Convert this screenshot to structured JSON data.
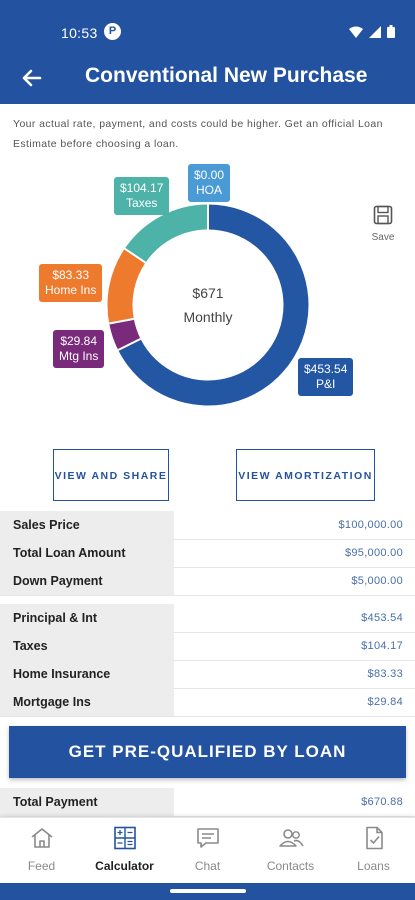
{
  "status_bar": {
    "time": "10:53",
    "notification_icon": "circle-p-icon",
    "icons": [
      "wifi-icon",
      "cell-signal-icon",
      "battery-icon"
    ]
  },
  "header": {
    "title": "Conventional New Purchase",
    "back_icon": "arrow-left-icon"
  },
  "disclaimer": "Your actual rate, payment, and costs could be higher. Get an official Loan Estimate before choosing a loan.",
  "chart_data": {
    "type": "pie",
    "style": "donut",
    "center_label": {
      "amount": "$671",
      "period": "Monthly"
    },
    "slices": [
      {
        "name": "P&I",
        "label": "$453.54",
        "value": 453.54,
        "color": "#2457a3"
      },
      {
        "name": "Mtg Ins",
        "label": "$29.84",
        "value": 29.84,
        "color": "#7a2a7a"
      },
      {
        "name": "Home Ins",
        "label": "$83.33",
        "value": 83.33,
        "color": "#ee7a2e"
      },
      {
        "name": "Taxes",
        "label": "$104.17",
        "value": 104.17,
        "color": "#4db3a8"
      },
      {
        "name": "HOA",
        "label": "$0.00",
        "value": 0.0,
        "color": "#4a9ad6"
      }
    ]
  },
  "save": {
    "label": "Save",
    "icon": "floppy-disk-icon"
  },
  "buttons": {
    "view_share": "VIEW AND SHARE",
    "view_amortization": "VIEW AMORTIZATION"
  },
  "summary_rows": [
    {
      "label": "Sales Price",
      "value": "$100,000.00"
    },
    {
      "label": "Total Loan Amount",
      "value": "$95,000.00"
    },
    {
      "label": "Down Payment",
      "value": "$5,000.00"
    }
  ],
  "payment_rows": [
    {
      "label": "Principal & Int",
      "value": "$453.54"
    },
    {
      "label": "Taxes",
      "value": "$104.17"
    },
    {
      "label": "Home Insurance",
      "value": "$83.33"
    },
    {
      "label": "Mortgage Ins",
      "value": "$29.84"
    }
  ],
  "cta": "GET PRE-QUALIFIED BY LOAN",
  "total_row": {
    "label": "Total Payment",
    "value": "$670.88"
  },
  "nav": [
    {
      "label": "Feed",
      "icon": "home-icon",
      "active": false
    },
    {
      "label": "Calculator",
      "icon": "calculator-icon",
      "active": true
    },
    {
      "label": "Chat",
      "icon": "chat-icon",
      "active": false
    },
    {
      "label": "Contacts",
      "icon": "contacts-icon",
      "active": false
    },
    {
      "label": "Loans",
      "icon": "document-check-icon",
      "active": false
    }
  ],
  "colors": {
    "brand": "#2353a0",
    "value_text": "#4a6fa8",
    "label_bg": "#ededed"
  }
}
